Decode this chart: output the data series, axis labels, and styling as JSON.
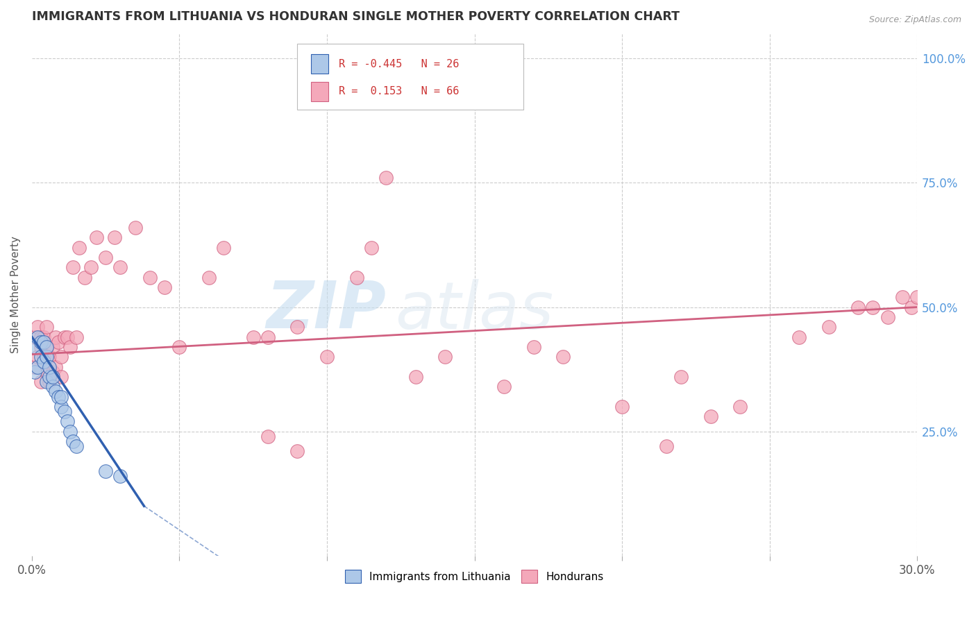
{
  "title": "IMMIGRANTS FROM LITHUANIA VS HONDURAN SINGLE MOTHER POVERTY CORRELATION CHART",
  "source": "Source: ZipAtlas.com",
  "ylabel": "Single Mother Poverty",
  "xlim": [
    0.0,
    0.3
  ],
  "ylim": [
    0.0,
    1.05
  ],
  "xticks": [
    0.0,
    0.05,
    0.1,
    0.15,
    0.2,
    0.25,
    0.3
  ],
  "xticklabels": [
    "0.0%",
    "",
    "",
    "",
    "",
    "",
    "30.0%"
  ],
  "yticks": [
    0.0,
    0.25,
    0.5,
    0.75,
    1.0
  ],
  "yticklabels": [
    "",
    "25.0%",
    "50.0%",
    "75.0%",
    "100.0%"
  ],
  "lithuania_R": -0.445,
  "lithuania_N": 26,
  "honduran_R": 0.153,
  "honduran_N": 66,
  "lithuania_color": "#adc8e8",
  "honduran_color": "#f4a8ba",
  "trend_lithuania_color": "#3060b0",
  "trend_honduran_color": "#d06080",
  "watermark_zip": "ZIP",
  "watermark_atlas": "atlas",
  "legend_R1": "R = -0.445",
  "legend_N1": "N = 26",
  "legend_R2": "R =  0.153",
  "legend_N2": "N = 66",
  "lithuania_x": [
    0.001,
    0.001,
    0.002,
    0.002,
    0.003,
    0.003,
    0.004,
    0.004,
    0.005,
    0.005,
    0.005,
    0.006,
    0.006,
    0.007,
    0.007,
    0.008,
    0.009,
    0.01,
    0.01,
    0.011,
    0.012,
    0.013,
    0.014,
    0.015,
    0.025,
    0.03
  ],
  "lithuania_y": [
    0.37,
    0.42,
    0.38,
    0.44,
    0.4,
    0.43,
    0.39,
    0.43,
    0.35,
    0.4,
    0.42,
    0.36,
    0.38,
    0.34,
    0.36,
    0.33,
    0.32,
    0.3,
    0.32,
    0.29,
    0.27,
    0.25,
    0.23,
    0.22,
    0.17,
    0.16
  ],
  "honduran_x": [
    0.001,
    0.001,
    0.002,
    0.002,
    0.003,
    0.003,
    0.003,
    0.004,
    0.004,
    0.005,
    0.005,
    0.005,
    0.006,
    0.006,
    0.007,
    0.007,
    0.008,
    0.008,
    0.009,
    0.01,
    0.01,
    0.011,
    0.012,
    0.013,
    0.014,
    0.015,
    0.016,
    0.018,
    0.02,
    0.022,
    0.025,
    0.028,
    0.03,
    0.035,
    0.04,
    0.045,
    0.05,
    0.06,
    0.065,
    0.075,
    0.08,
    0.09,
    0.1,
    0.11,
    0.115,
    0.12,
    0.13,
    0.14,
    0.16,
    0.17,
    0.18,
    0.2,
    0.215,
    0.22,
    0.23,
    0.24,
    0.26,
    0.27,
    0.28,
    0.285,
    0.29,
    0.295,
    0.298,
    0.3,
    0.08,
    0.09
  ],
  "honduran_y": [
    0.38,
    0.44,
    0.4,
    0.46,
    0.35,
    0.42,
    0.44,
    0.4,
    0.44,
    0.37,
    0.42,
    0.46,
    0.35,
    0.4,
    0.37,
    0.42,
    0.38,
    0.44,
    0.43,
    0.36,
    0.4,
    0.44,
    0.44,
    0.42,
    0.58,
    0.44,
    0.62,
    0.56,
    0.58,
    0.64,
    0.6,
    0.64,
    0.58,
    0.66,
    0.56,
    0.54,
    0.42,
    0.56,
    0.62,
    0.44,
    0.44,
    0.46,
    0.4,
    0.56,
    0.62,
    0.76,
    0.36,
    0.4,
    0.34,
    0.42,
    0.4,
    0.3,
    0.22,
    0.36,
    0.28,
    0.3,
    0.44,
    0.46,
    0.5,
    0.5,
    0.48,
    0.52,
    0.5,
    0.52,
    0.24,
    0.21
  ]
}
